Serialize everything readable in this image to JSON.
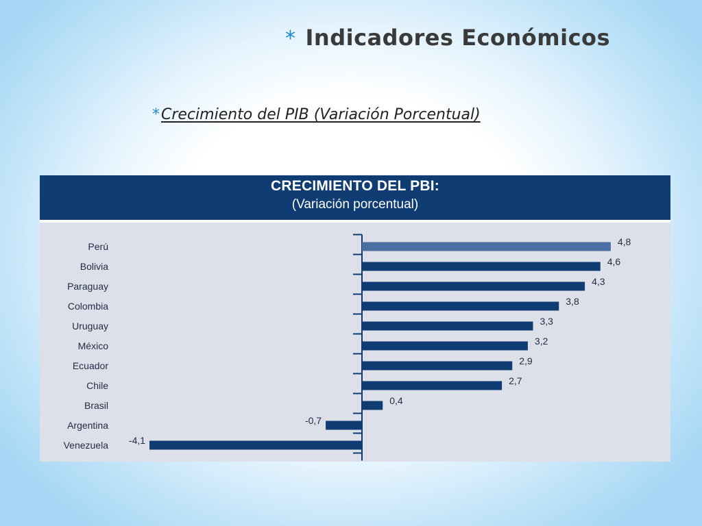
{
  "slide": {
    "bullet": "*",
    "title": "Indicadores Económicos",
    "subtitle": "Crecimiento del PIB (Variación Porcentual)"
  },
  "chart_data": {
    "type": "bar",
    "orientation": "horizontal",
    "title": "CRECIMIENTO DEL PBI:",
    "subtitle": "(Variación porcentual)",
    "categories": [
      "Perú",
      "Bolivia",
      "Paraguay",
      "Colombia",
      "Uruguay",
      "México",
      "Ecuador",
      "Chile",
      "Brasil",
      "Argentina",
      "Venezuela"
    ],
    "values": [
      4.8,
      4.6,
      4.3,
      3.8,
      3.3,
      3.2,
      2.9,
      2.7,
      0.4,
      -0.7,
      -4.1
    ],
    "value_labels": [
      "4,8",
      "4,6",
      "4,3",
      "3,8",
      "3,3",
      "3,2",
      "2,9",
      "2,7",
      "0,4",
      "-0,7",
      "-4,1"
    ],
    "highlight_category": "Perú",
    "colors": {
      "bar": "#0f3c73",
      "highlight": "#4a6fa3",
      "header": "#0f3c73",
      "panel": "#dde0e9"
    },
    "grid": false,
    "legend": "none"
  }
}
